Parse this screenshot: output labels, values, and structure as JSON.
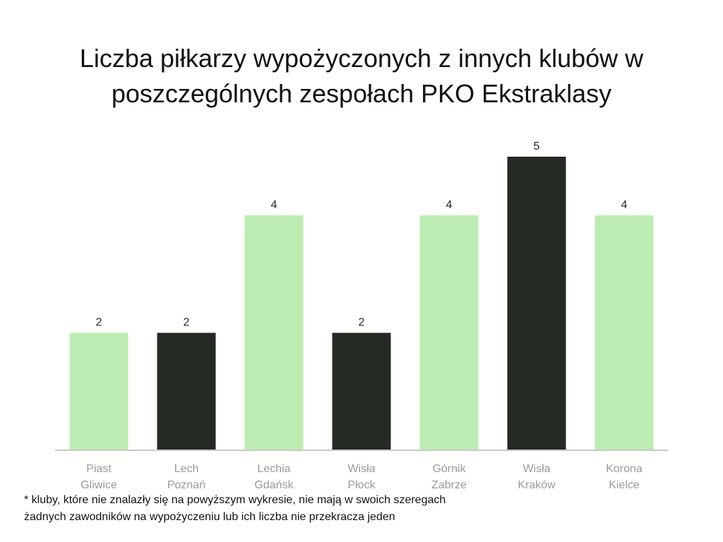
{
  "title": {
    "line1": "Liczba piłkarzy wypożyczonych z innych klubów w",
    "line2": "poszczególnych zespołach PKO Ekstraklasy"
  },
  "footnote": {
    "line1": "* kluby, które nie znalazły się na powyższym wykresie, nie mają w swoich szeregach",
    "line2": "żadnych zawodników na wypożyczeniu lub ich liczba nie przekracza jeden"
  },
  "chart_data": {
    "type": "bar",
    "categories": [
      [
        "Piast",
        "Gliwice"
      ],
      [
        "Lech",
        "Poznań"
      ],
      [
        "Lechia",
        "Gdańsk"
      ],
      [
        "Wisła",
        "Płock"
      ],
      [
        "Górnik",
        "Zabrze"
      ],
      [
        "Wisła",
        "Kraków"
      ],
      [
        "Korona",
        "Kielce"
      ]
    ],
    "values": [
      2,
      2,
      4,
      2,
      4,
      5,
      4
    ],
    "bar_colors": [
      "#bdecb2",
      "#262a24",
      "#bdecb2",
      "#262a24",
      "#bdecb2",
      "#262a24",
      "#bdecb2"
    ],
    "axis_color": "#c8c8c8",
    "data_labels": true,
    "grid": false,
    "ylim": [
      0,
      5
    ]
  }
}
